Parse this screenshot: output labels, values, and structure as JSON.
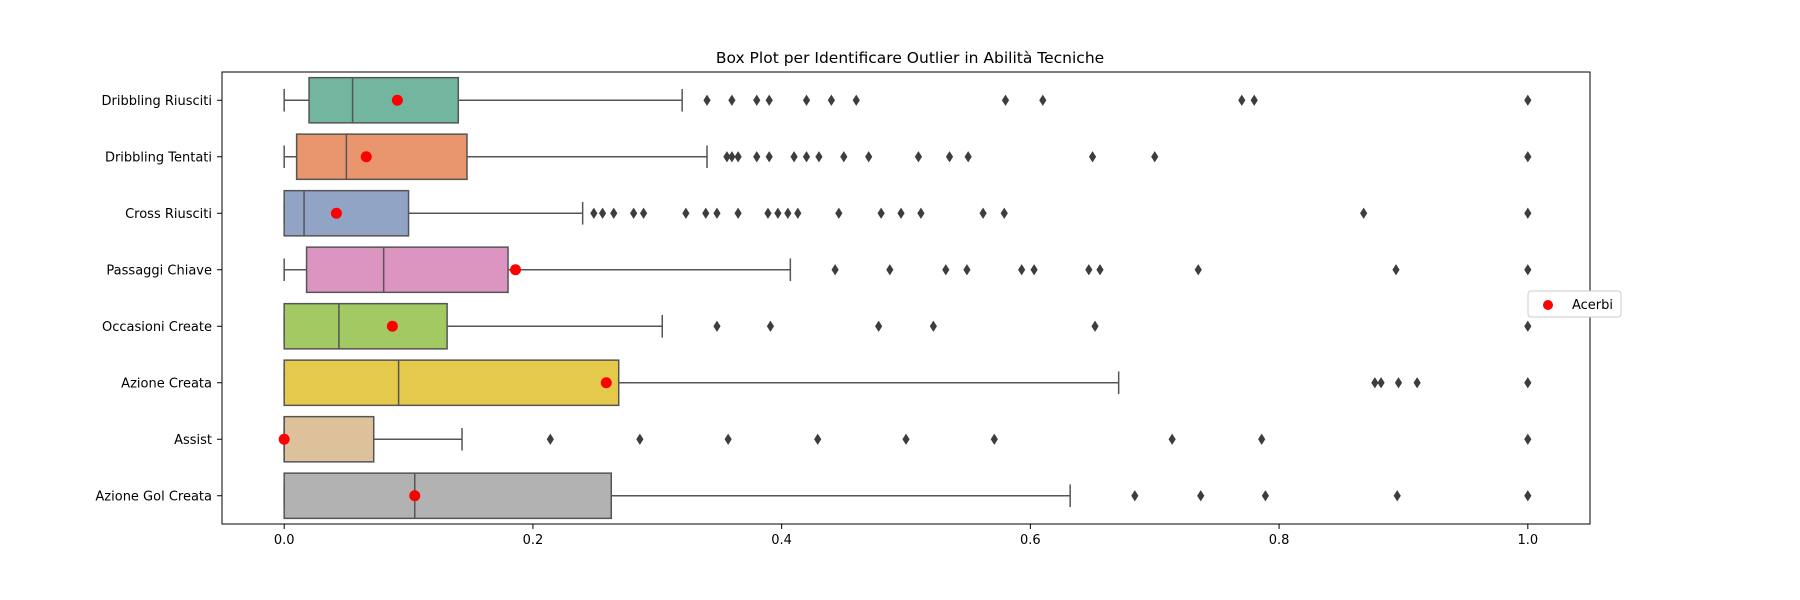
{
  "chart_data": {
    "type": "box",
    "orientation": "horizontal",
    "title": "Box Plot per Identificare Outlier in Abilità Tecniche",
    "xlabel": "",
    "ylabel": "",
    "xlim": [
      -0.05,
      1.05
    ],
    "xticks": [
      0.0,
      0.2,
      0.4,
      0.6,
      0.8,
      1.0
    ],
    "xtick_labels": [
      "0.0",
      "0.2",
      "0.4",
      "0.6",
      "0.8",
      "1.0"
    ],
    "grid": false,
    "legend": {
      "placement": "right",
      "entries": [
        {
          "label": "Acerbi",
          "marker": "circle",
          "color": "#ff0000"
        }
      ]
    },
    "boxes": [
      {
        "category": "Dribbling Riusciti",
        "color": "#73b69f",
        "whisker_low": 0.0,
        "q1": 0.02,
        "median": 0.055,
        "q3": 0.14,
        "whisker_high": 0.32,
        "outliers": [
          0.34,
          0.36,
          0.38,
          0.39,
          0.42,
          0.44,
          0.46,
          0.58,
          0.61,
          0.77,
          0.78,
          1.0
        ],
        "acerbi": 0.091
      },
      {
        "category": "Dribbling Tentati",
        "color": "#e9966f",
        "whisker_low": 0.0,
        "q1": 0.01,
        "median": 0.05,
        "q3": 0.147,
        "whisker_high": 0.34,
        "outliers": [
          0.356,
          0.36,
          0.365,
          0.38,
          0.39,
          0.41,
          0.42,
          0.43,
          0.45,
          0.47,
          0.51,
          0.535,
          0.55,
          0.65,
          0.7,
          1.0
        ],
        "acerbi": 0.066
      },
      {
        "category": "Cross Riusciti",
        "color": "#91a4c6",
        "whisker_low": 0.0,
        "q1": 0.0,
        "median": 0.016,
        "q3": 0.1,
        "whisker_high": 0.24,
        "outliers": [
          0.249,
          0.256,
          0.265,
          0.281,
          0.289,
          0.323,
          0.339,
          0.348,
          0.365,
          0.389,
          0.397,
          0.405,
          0.413,
          0.446,
          0.48,
          0.496,
          0.512,
          0.562,
          0.579,
          0.868,
          1.0
        ],
        "acerbi": 0.042
      },
      {
        "category": "Passaggi Chiave",
        "color": "#dc94c0",
        "whisker_low": 0.0,
        "q1": 0.018,
        "median": 0.08,
        "q3": 0.18,
        "whisker_high": 0.407,
        "outliers": [
          0.443,
          0.487,
          0.532,
          0.549,
          0.593,
          0.603,
          0.647,
          0.656,
          0.735,
          0.894,
          1.0
        ],
        "acerbi": 0.186
      },
      {
        "category": "Occasioni Create",
        "color": "#a3c963",
        "whisker_low": 0.0,
        "q1": 0.0,
        "median": 0.044,
        "q3": 0.131,
        "whisker_high": 0.304,
        "outliers": [
          0.348,
          0.391,
          0.478,
          0.522,
          0.652,
          1.0
        ],
        "acerbi": 0.087
      },
      {
        "category": "Azione Creata",
        "color": "#e5c94b",
        "whisker_low": 0.0,
        "q1": 0.0,
        "median": 0.092,
        "q3": 0.269,
        "whisker_high": 0.671,
        "outliers": [
          0.877,
          0.882,
          0.896,
          0.911,
          1.0
        ],
        "acerbi": 0.259
      },
      {
        "category": "Assist",
        "color": "#dcc19a",
        "whisker_low": 0.0,
        "q1": 0.0,
        "median": 0.0,
        "q3": 0.072,
        "whisker_high": 0.143,
        "outliers": [
          0.214,
          0.286,
          0.357,
          0.429,
          0.5,
          0.571,
          0.714,
          0.786,
          1.0
        ],
        "acerbi": 0.0
      },
      {
        "category": "Azione Gol Creata",
        "color": "#b2b2b2",
        "whisker_low": 0.0,
        "q1": 0.0,
        "median": 0.105,
        "q3": 0.263,
        "whisker_high": 0.632,
        "outliers": [
          0.684,
          0.737,
          0.789,
          0.895,
          1.0
        ],
        "acerbi": 0.105
      }
    ]
  }
}
